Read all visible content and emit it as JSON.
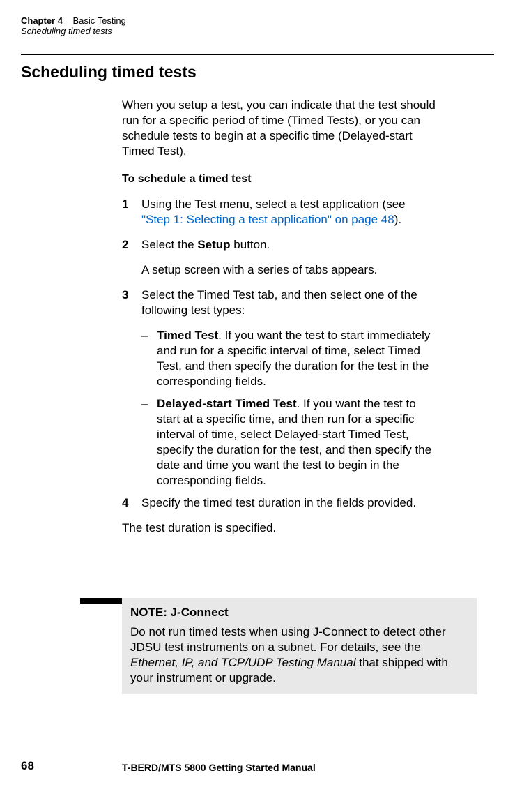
{
  "header": {
    "chapter_label": "Chapter 4",
    "chapter_title": "Basic Testing",
    "subtitle": "Scheduling timed tests"
  },
  "section_heading": "Scheduling timed tests",
  "intro": "When you setup a test, you can indicate that the test should run for a specific period of time (Timed Tests), or you can schedule tests to begin at a specific time (Delayed-start Timed Test).",
  "subheading": "To schedule a timed test",
  "steps": {
    "s1": {
      "num": "1",
      "text_a": "Using the Test menu, select a test application (see ",
      "link": "\"Step 1: Selecting a test application\" on page 48",
      "text_b": ")."
    },
    "s2": {
      "num": "2",
      "text_a": "Select the ",
      "bold": "Setup",
      "text_b": " button.",
      "sub": "A setup screen with a series of tabs appears."
    },
    "s3": {
      "num": "3",
      "text": "Select the Timed Test tab, and then select one of the following test types:",
      "b1": {
        "bold": "Timed Test",
        "rest": ". If you want the test to start immediately and run for a specific interval of time, select Timed Test, and then specify the duration for the test in the corresponding fields."
      },
      "b2": {
        "bold": "Delayed-start Timed Test",
        "rest": ". If you want the test to start at a specific time, and then run for a specific interval of time, select Delayed-start Timed Test, specify the duration for the test, and then specify the date and time you want the test to begin in the corresponding fields."
      }
    },
    "s4": {
      "num": "4",
      "text": "Specify the timed test duration in the fields provided."
    }
  },
  "final": "The test duration is specified.",
  "note": {
    "title": "NOTE: J-Connect",
    "text_a": "Do not run timed tests when using J-Connect to detect other JDSU test instruments on a subnet. For details, see the ",
    "italic": "Ethernet, IP, and TCP/UDP Testing Manual",
    "text_b": " that shipped with your instrument or upgrade."
  },
  "footer": {
    "page": "68",
    "title": "T-BERD/MTS 5800 Getting Started Manual"
  },
  "dash": "–"
}
